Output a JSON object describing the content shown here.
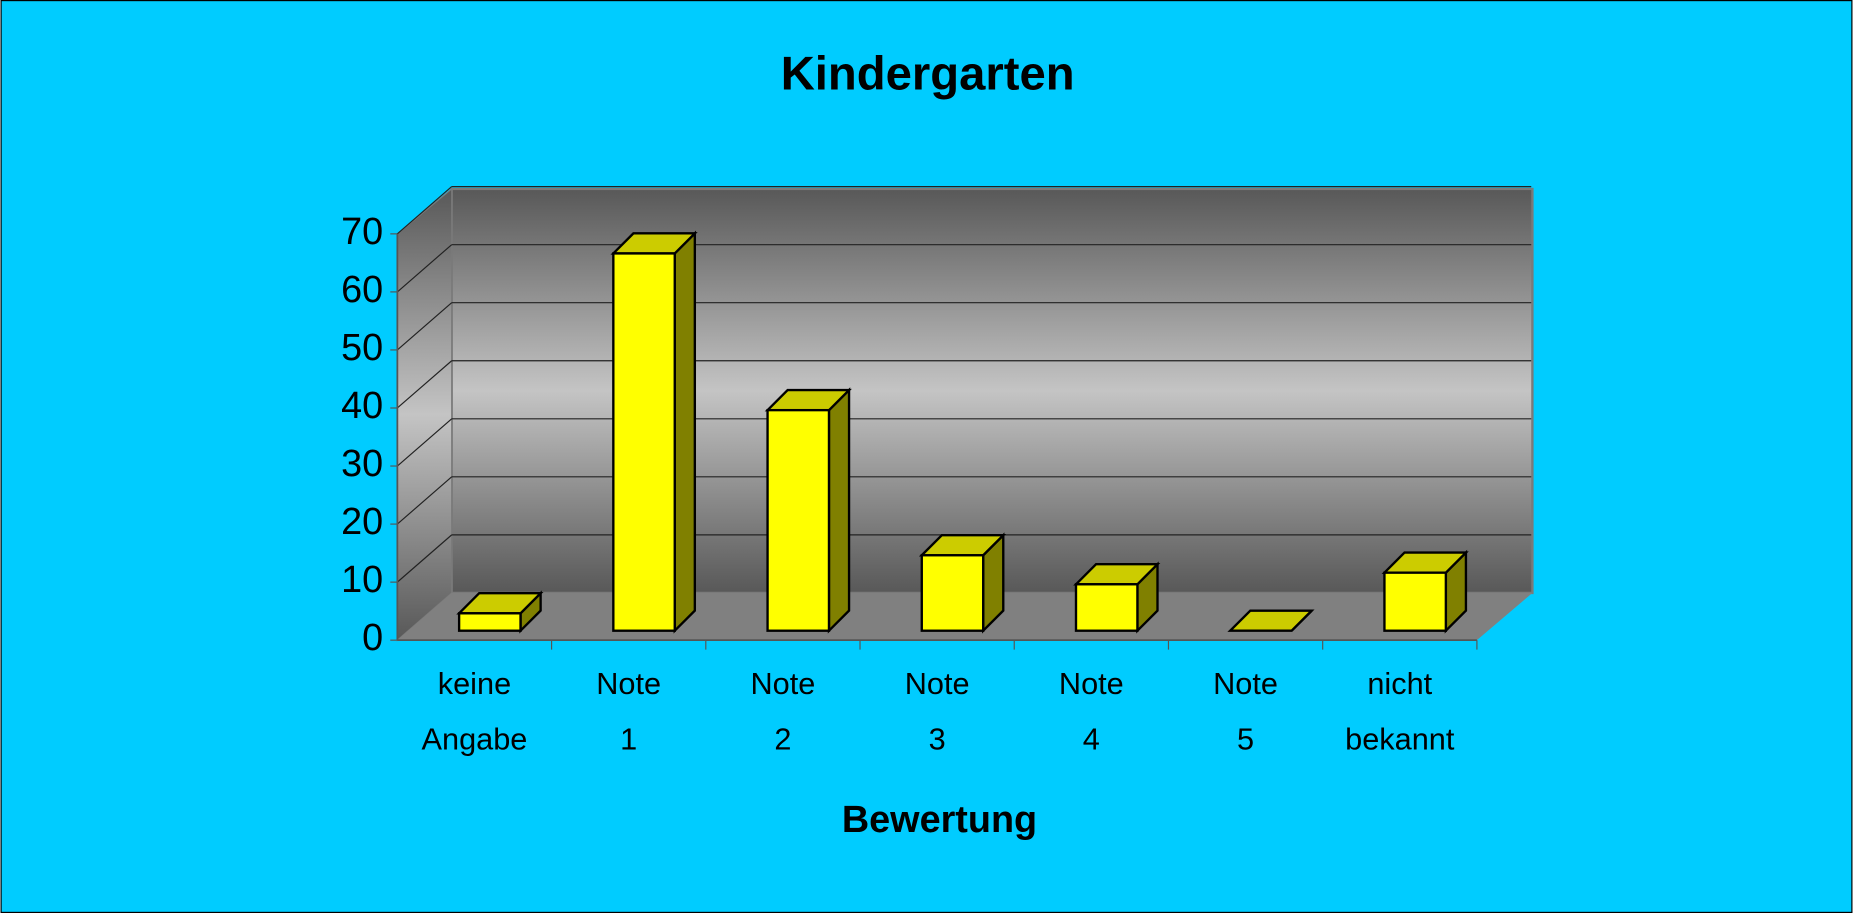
{
  "chart_data": {
    "type": "bar3d",
    "title": "Kindergarten",
    "x_label": "Bewertung",
    "categories": [
      "keine Angabe",
      "Note 1",
      "Note 2",
      "Note 3",
      "Note 4",
      "Note 5",
      "nicht bekannt"
    ],
    "values": [
      3,
      65,
      38,
      13,
      8,
      0,
      10
    ],
    "color": "#ffff00",
    "ylim": [
      0,
      70
    ],
    "yticks": [
      0,
      10,
      20,
      30,
      40,
      50,
      60,
      70
    ],
    "grid": true
  }
}
